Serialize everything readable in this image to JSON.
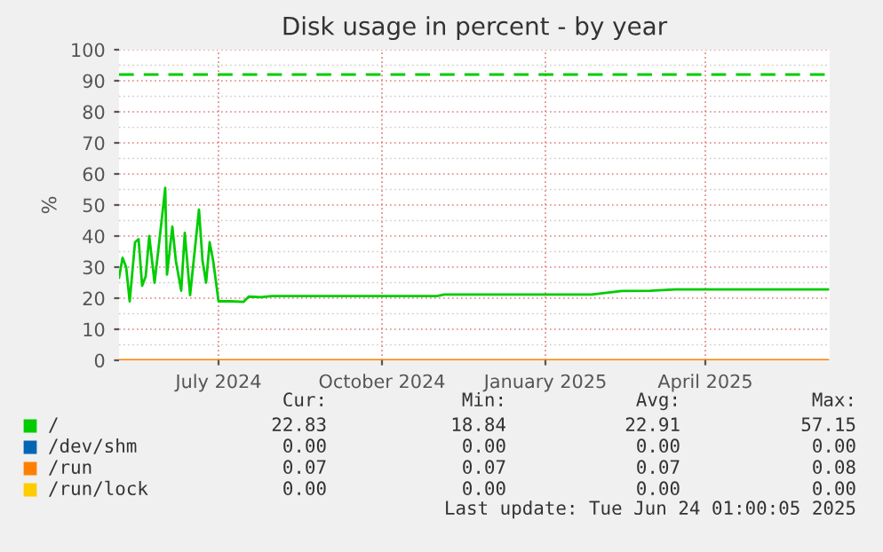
{
  "chart_data": {
    "type": "line",
    "title": "Disk usage in percent - by year",
    "ylabel": "%",
    "xlim": [
      "2024-05-06",
      "2025-06-10"
    ],
    "ylim": [
      0,
      100
    ],
    "xticks": [
      {
        "value": "2024-07-01",
        "label": "July 2024"
      },
      {
        "value": "2024-10-01",
        "label": "October 2024"
      },
      {
        "value": "2025-01-01",
        "label": "January 2025"
      },
      {
        "value": "2025-04-01",
        "label": "April 2025"
      }
    ],
    "yticks": [
      0,
      10,
      20,
      30,
      40,
      50,
      60,
      70,
      80,
      90,
      100
    ],
    "grid": true,
    "legend": "bottom",
    "marker": "none",
    "line_style": "solid",
    "ref_lines": [
      {
        "axis": "y",
        "value": 92,
        "color": "#00cc00",
        "line_style": "dashed"
      }
    ],
    "series": [
      {
        "name": "/",
        "color": "#00cc00",
        "x": [
          "2024-05-06",
          "2024-05-08",
          "2024-05-10",
          "2024-05-12",
          "2024-05-15",
          "2024-05-17",
          "2024-05-19",
          "2024-05-21",
          "2024-05-23",
          "2024-05-26",
          "2024-05-29",
          "2024-06-01",
          "2024-06-02",
          "2024-06-05",
          "2024-06-07",
          "2024-06-10",
          "2024-06-12",
          "2024-06-15",
          "2024-06-20",
          "2024-06-22",
          "2024-06-24",
          "2024-06-26",
          "2024-06-28",
          "2024-07-01",
          "2024-07-08",
          "2024-07-15",
          "2024-07-18",
          "2024-07-25",
          "2024-07-31",
          "2024-11-01",
          "2024-11-05",
          "2025-01-27",
          "2025-02-13",
          "2025-03-01",
          "2025-03-15",
          "2025-06-09"
        ],
        "values": [
          26.6,
          33,
          30,
          19,
          38,
          39,
          24,
          27,
          40,
          25,
          40,
          55.5,
          27.6,
          43,
          32,
          22.4,
          41,
          21,
          48.5,
          32,
          25,
          38,
          32,
          19,
          19,
          18.8,
          20.5,
          20.3,
          20.7,
          20.7,
          21.2,
          21.2,
          22.3,
          22.4,
          22.8,
          22.8
        ]
      },
      {
        "name": "/dev/shm",
        "color": "#0066b3"
      },
      {
        "name": "/run",
        "color": "#ff8000",
        "x": [
          "2024-05-06",
          "2025-06-09"
        ],
        "values": [
          0,
          0
        ]
      },
      {
        "name": "/run/lock",
        "color": "#ffcc00"
      }
    ],
    "annotations": [
      "Cur:",
      "Min:",
      "Avg:",
      "Max:",
      "22.83",
      "18.84",
      "22.91",
      "57.15",
      "0.00",
      "0.00",
      "0.00",
      "0.00",
      "0.07",
      "0.07",
      "0.07",
      "0.08",
      "0.00",
      "0.00",
      "0.00",
      "0.00",
      "Last update: Tue Jun 24 01:00:05 2025"
    ]
  }
}
